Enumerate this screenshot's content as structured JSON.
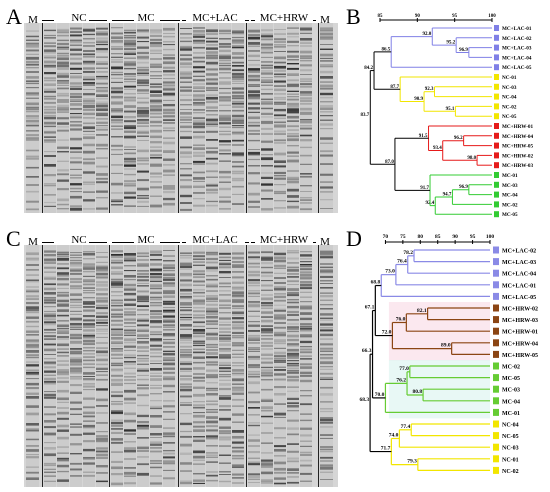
{
  "panels": {
    "A": {
      "letter": "A",
      "marker": "M",
      "groups": [
        "NC",
        "MC",
        "MC+LAC",
        "MC+HRW"
      ],
      "marker_right": "M"
    },
    "B": {
      "letter": "B"
    },
    "C": {
      "letter": "C",
      "marker": "M",
      "groups": [
        "NC",
        "MC",
        "MC+LAC",
        "MC+HRW"
      ],
      "marker_right": "M"
    },
    "D": {
      "letter": "D"
    }
  },
  "dendro_B": {
    "scale_ticks": [
      "85",
      "90",
      "95",
      "100"
    ],
    "labels": [
      "MC+LAC-01",
      "MC+LAC-02",
      "MC+LAC-03",
      "MC+LAC-04",
      "MC+LAC-05",
      "NC-01",
      "NC-03",
      "NC-04",
      "NC-02",
      "NC-05",
      "MC+HRW-01",
      "MC+HRW-04",
      "MC+HRW-05",
      "MC+HRW-02",
      "MC+HRW-03",
      "MC-01",
      "MC-03",
      "MC-04",
      "MC-02",
      "MC-05"
    ],
    "node_values": [
      "92.0",
      "96.9",
      "95.2",
      "86.5",
      "84.2",
      "87.7",
      "92.3",
      "90.9",
      "95.1",
      "83.7",
      "91.5",
      "96.2",
      "93.4",
      "98.0",
      "87.0",
      "91.7",
      "96.9",
      "94.7",
      "92.4"
    ],
    "colors": {
      "LAC": "#8080e6",
      "NC": "#f2e600",
      "HRW": "#e61a1a",
      "MC": "#33cc33"
    }
  },
  "dendro_D": {
    "scale_ticks": [
      "70",
      "75",
      "80",
      "85",
      "90",
      "95",
      "100"
    ],
    "labels": [
      "MC+LAC-02",
      "MC+LAC-03",
      "MC+LAC-04",
      "MC+LAC-01",
      "MC+LAC-05",
      "MC+HRW-02",
      "MC+HRW-03",
      "MC+HRW-01",
      "MC+HRW-04",
      "MC+HRW-05",
      "MC-02",
      "MC-05",
      "MC-03",
      "MC-04",
      "MC-01",
      "NC-04",
      "NC-05",
      "NC-03",
      "NC-01",
      "NC-02"
    ],
    "node_values": [
      "78.2",
      "76.4",
      "73.0",
      "68.8",
      "67.1",
      "82.1",
      "76.0",
      "72.0",
      "89.0",
      "77.0",
      "76.2",
      "80.8",
      "70.0",
      "66.3",
      "77.4",
      "74.0",
      "79.3",
      "71.7",
      "68.3"
    ],
    "colors": {
      "LAC": "#8a8ae6",
      "HRW": "#8b4513",
      "MC": "#66cc33",
      "NC": "#f2e600"
    }
  }
}
